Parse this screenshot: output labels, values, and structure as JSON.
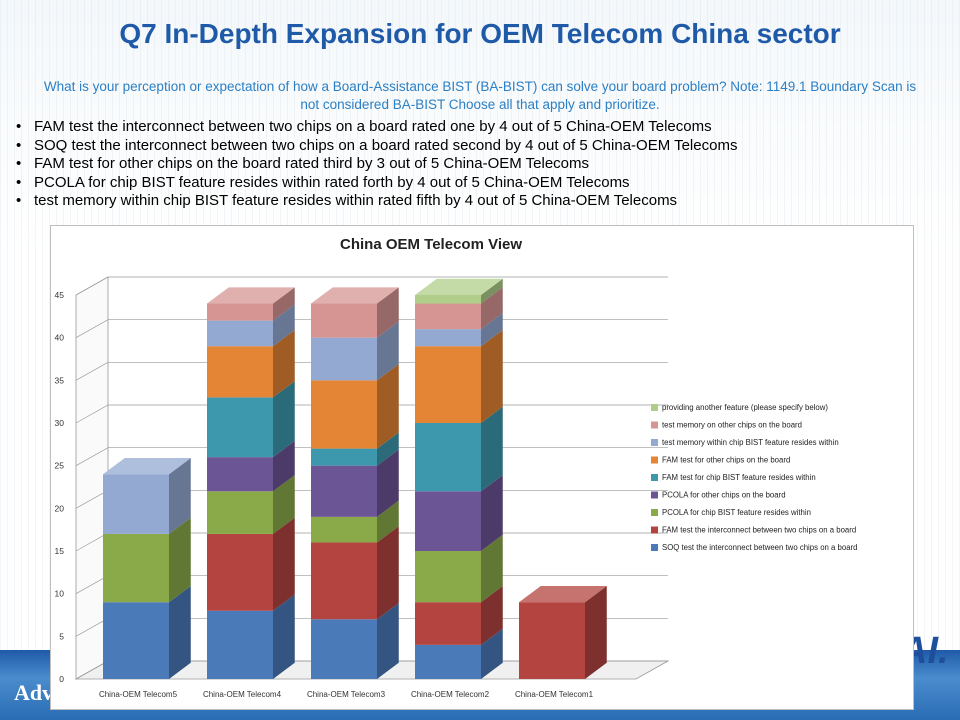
{
  "slide": {
    "title": "Q7 In-Depth Expansion for OEM Telecom China sector",
    "question": "What is your perception or expectation of how a Board-Assistance BIST (BA-BIST) can solve your board problem?    Note: 1149.1 Boundary Scan is not considered BA-BIST     Choose all that apply and prioritize.",
    "bullets": [
      "FAM test the interconnect between two chips on a board rated one by 4 out of 5 China-OEM Telecoms",
      "SOQ test the interconnect between two chips on a board rated second by 4 out of 5 China-OEM Telecoms",
      "FAM test for other chips on the board rated third by 3 out of 5 China-OEM Telecoms",
      "PCOLA for chip BIST feature resides within rated forth by 4 out of 5 China-OEM Telecoms",
      "test memory within chip BIST feature resides within rated fifth by 4 out of 5 China-OEM Telecoms"
    ],
    "footer_brand": "Adv",
    "logo_text": "AI."
  },
  "chart_data": {
    "type": "bar",
    "stacked": true,
    "three_d": true,
    "title": "China OEM Telecom View",
    "categories": [
      "China-OEM Telecom5",
      "China-OEM Telecom4",
      "China-OEM Telecom3",
      "China-OEM Telecom2",
      "China-OEM Telecom1"
    ],
    "ylim": [
      0,
      45
    ],
    "yticks": [
      0,
      5,
      10,
      15,
      20,
      25,
      30,
      35,
      40,
      45
    ],
    "legend_position": "right",
    "series": [
      {
        "name": "SOQ test the interconnect between two chips on a board",
        "color": "#4a7ab8",
        "values": [
          9,
          8,
          7,
          4,
          0
        ]
      },
      {
        "name": "FAM test the interconnect between two chips on a board",
        "color": "#b34440",
        "values": [
          0,
          9,
          9,
          5,
          9
        ]
      },
      {
        "name": "PCOLA for chip BIST feature resides within",
        "color": "#8aaa4a",
        "values": [
          8,
          5,
          3,
          6,
          0
        ]
      },
      {
        "name": "PCOLA for other chips on the board",
        "color": "#6c5594",
        "values": [
          0,
          4,
          6,
          7,
          0
        ]
      },
      {
        "name": "FAM test for chip BIST feature resides within",
        "color": "#3d97ad",
        "values": [
          0,
          7,
          2,
          8,
          0
        ]
      },
      {
        "name": "FAM test for other chips on the board",
        "color": "#e38535",
        "values": [
          0,
          6,
          8,
          9,
          0
        ]
      },
      {
        "name": "test memory within chip BIST feature resides within",
        "color": "#93a9d2",
        "values": [
          7,
          3,
          5,
          2,
          0
        ]
      },
      {
        "name": "test memory on other chips on the board",
        "color": "#d69593",
        "values": [
          0,
          2,
          4,
          3,
          0
        ]
      },
      {
        "name": "providing another feature (please specify below)",
        "color": "#b0cd8a",
        "values": [
          0,
          0,
          0,
          1,
          0
        ]
      }
    ]
  }
}
